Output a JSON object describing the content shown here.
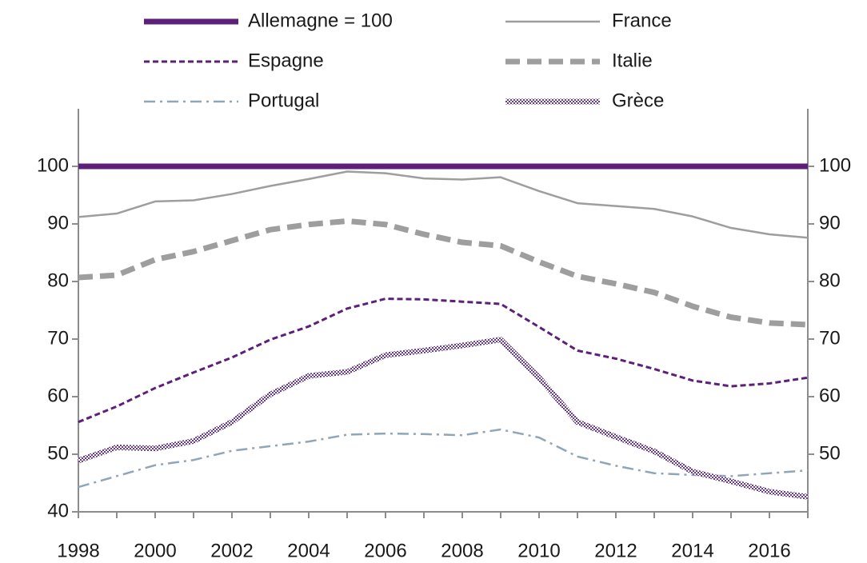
{
  "chart_data": {
    "type": "line",
    "x": [
      1998,
      1999,
      2000,
      2001,
      2002,
      2003,
      2004,
      2005,
      2006,
      2007,
      2008,
      2009,
      2010,
      2011,
      2012,
      2013,
      2014,
      2015,
      2016,
      2017
    ],
    "xlim": [
      1998,
      2017
    ],
    "xticks": [
      1998,
      2000,
      2002,
      2004,
      2006,
      2008,
      2010,
      2012,
      2014,
      2016
    ],
    "ylim": [
      40,
      110
    ],
    "yticks": [
      40,
      50,
      60,
      70,
      80,
      90,
      100
    ],
    "y2lim": [
      40,
      110
    ],
    "y2ticks": [
      50,
      60,
      70,
      80,
      90,
      100
    ],
    "grid": false,
    "legend": "top",
    "series": [
      {
        "name": "Allemagne = 100",
        "color": "#5c1f7a",
        "line_style": "solid-thick",
        "values": [
          100,
          100,
          100,
          100,
          100,
          100,
          100,
          100,
          100,
          100,
          100,
          100,
          100,
          100,
          100,
          100,
          100,
          100,
          100,
          100
        ]
      },
      {
        "name": "France",
        "color": "#9e9e9e",
        "line_style": "solid",
        "values": [
          91.2,
          91.8,
          93.9,
          94.1,
          95.2,
          96.6,
          97.8,
          99.1,
          98.8,
          97.9,
          97.7,
          98.1,
          95.7,
          93.6,
          93.1,
          92.6,
          91.3,
          89.3,
          88.2,
          87.6
        ]
      },
      {
        "name": "Espagne",
        "color": "#5c1f7a",
        "line_style": "dashed",
        "values": [
          55.6,
          58.3,
          61.5,
          64.2,
          66.8,
          69.9,
          72.2,
          75.3,
          77.0,
          76.9,
          76.5,
          76.1,
          72.1,
          68.0,
          66.6,
          64.8,
          62.8,
          61.8,
          62.3,
          63.3
        ]
      },
      {
        "name": "Italie",
        "color": "#9e9e9e",
        "line_style": "dashed-thick",
        "values": [
          80.7,
          81.1,
          83.8,
          85.2,
          87.1,
          89.0,
          89.9,
          90.5,
          89.9,
          88.2,
          86.8,
          86.2,
          83.4,
          80.9,
          79.6,
          78.1,
          75.7,
          73.8,
          72.8,
          72.5
        ]
      },
      {
        "name": "Portugal",
        "color": "#8fa5b8",
        "line_style": "dashdot",
        "values": [
          44.3,
          46.2,
          48.1,
          49.0,
          50.6,
          51.4,
          52.2,
          53.4,
          53.6,
          53.5,
          53.3,
          54.3,
          52.9,
          49.6,
          48.0,
          46.7,
          46.4,
          46.2,
          46.7,
          47.2
        ]
      },
      {
        "name": "Grèce",
        "color": "#6b3a8a",
        "line_style": "pattern",
        "values": [
          48.9,
          51.2,
          51.0,
          52.3,
          55.6,
          60.4,
          63.6,
          64.3,
          67.2,
          68.0,
          68.9,
          69.9,
          63.3,
          55.6,
          53.0,
          50.5,
          47.0,
          45.3,
          43.5,
          42.6
        ]
      }
    ]
  }
}
